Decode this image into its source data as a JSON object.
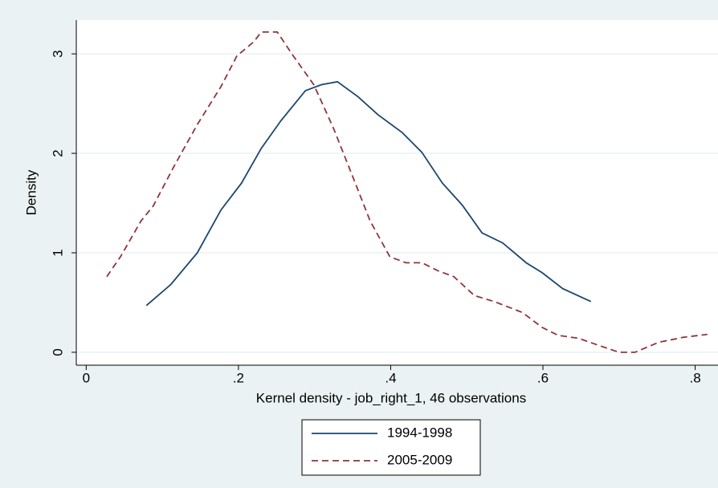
{
  "chart_data": {
    "type": "line",
    "xlabel": "Kernel density - job_right_1, 46 observations",
    "ylabel": "Density",
    "series": [
      {
        "name": "1994-1998",
        "color": "#1a476f",
        "dash": false,
        "x": [
          0.079,
          0.111,
          0.146,
          0.177,
          0.204,
          0.23,
          0.256,
          0.288,
          0.309,
          0.33,
          0.357,
          0.383,
          0.415,
          0.441,
          0.468,
          0.494,
          0.52,
          0.547,
          0.578,
          0.599,
          0.626,
          0.663
        ],
        "values": [
          0.47,
          0.68,
          1.0,
          1.43,
          1.7,
          2.05,
          2.33,
          2.63,
          2.69,
          2.72,
          2.57,
          2.39,
          2.21,
          2.01,
          1.7,
          1.48,
          1.2,
          1.1,
          0.9,
          0.8,
          0.64,
          0.51
        ]
      },
      {
        "name": "2005-2009",
        "color": "#90353b",
        "dash": true,
        "x": [
          0.027,
          0.045,
          0.072,
          0.088,
          0.114,
          0.146,
          0.177,
          0.198,
          0.22,
          0.23,
          0.251,
          0.272,
          0.299,
          0.325,
          0.352,
          0.373,
          0.399,
          0.42,
          0.441,
          0.462,
          0.483,
          0.51,
          0.536,
          0.573,
          0.599,
          0.62,
          0.647,
          0.673,
          0.7,
          0.721,
          0.752,
          0.784,
          0.816
        ],
        "values": [
          0.76,
          0.96,
          1.32,
          1.47,
          1.85,
          2.29,
          2.67,
          2.98,
          3.12,
          3.22,
          3.22,
          2.98,
          2.69,
          2.25,
          1.73,
          1.32,
          0.96,
          0.9,
          0.9,
          0.82,
          0.76,
          0.57,
          0.51,
          0.4,
          0.25,
          0.17,
          0.14,
          0.07,
          0.0,
          0.0,
          0.1,
          0.15,
          0.18
        ]
      }
    ],
    "xlim": [
      -0.013,
      0.83
    ],
    "ylim": [
      -0.13,
      3.34
    ],
    "xticks": [
      0,
      {
        "value": 0.2,
        "label": ".2"
      },
      {
        "value": 0.4,
        "label": ".4"
      },
      {
        "value": 0.6,
        "label": ".6"
      },
      {
        "value": 0.8,
        "label": ".8"
      }
    ],
    "yticks": [
      0,
      1,
      2,
      3
    ],
    "grid": true,
    "legend": "bottom"
  }
}
